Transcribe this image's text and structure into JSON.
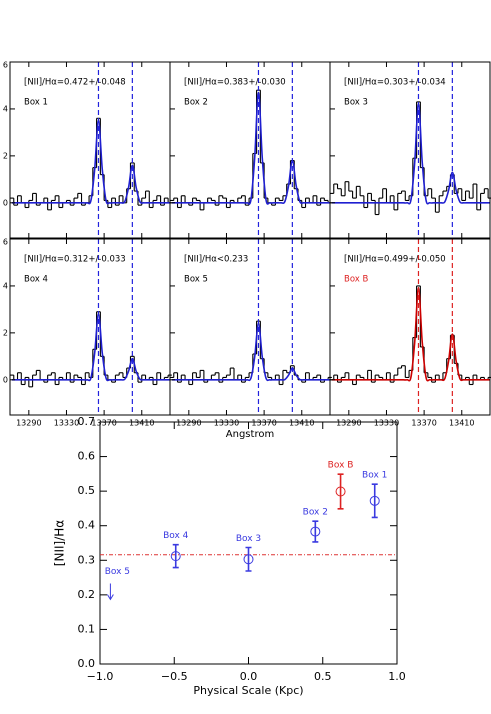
{
  "chart_data": [
    {
      "type": "spectrum",
      "annotation": "[NII]/Hα=0.472+/-0.048",
      "box_label": "Box 1",
      "box_label_color": "#000000",
      "color": "#000000",
      "fit_color": "#1f1fd0",
      "vline_color": "#2222dd",
      "vlines": [
        13364,
        13400
      ],
      "xlim": [
        13270,
        13440
      ],
      "ylim": [
        -1.5,
        6
      ],
      "xticks": [
        13290,
        13330,
        13370,
        13410
      ],
      "yticks": [
        0,
        2,
        4,
        6
      ],
      "x": [
        13272,
        13276,
        13280,
        13284,
        13288,
        13292,
        13296,
        13300,
        13304,
        13308,
        13312,
        13316,
        13320,
        13324,
        13328,
        13332,
        13336,
        13340,
        13344,
        13348,
        13352,
        13356,
        13360,
        13364,
        13368,
        13372,
        13376,
        13380,
        13384,
        13388,
        13392,
        13396,
        13400,
        13404,
        13408,
        13412,
        13416,
        13420,
        13424,
        13428,
        13432,
        13436,
        13440
      ],
      "values": [
        0.2,
        -0.1,
        0.3,
        0.0,
        -0.2,
        0.1,
        0.4,
        -0.1,
        0.0,
        0.2,
        -0.3,
        0.1,
        0.3,
        -0.2,
        0.0,
        0.1,
        -0.1,
        0.2,
        0.4,
        -0.1,
        0.0,
        0.3,
        1.5,
        3.6,
        1.2,
        0.1,
        -0.2,
        0.2,
        -0.1,
        0.3,
        0.0,
        0.6,
        1.7,
        0.5,
        -0.1,
        0.2,
        0.5,
        -0.2,
        0.1,
        0.3,
        -0.1,
        0.2,
        0.0
      ],
      "fit": [
        0,
        0,
        0,
        0,
        0,
        0,
        0,
        0,
        0,
        0,
        0,
        0,
        0,
        0,
        0,
        0,
        0,
        0,
        0,
        0,
        0,
        0.1,
        1.44,
        3.5,
        1.44,
        0.1,
        0,
        0,
        0,
        0,
        0.05,
        0.66,
        1.6,
        0.66,
        0.05,
        0,
        0,
        0,
        0,
        0,
        0,
        0,
        0
      ]
    },
    {
      "type": "spectrum",
      "annotation": "[NII]/Hα=0.383+/-0.030",
      "box_label": "Box 2",
      "box_label_color": "#000000",
      "color": "#000000",
      "fit_color": "#1f1fd0",
      "vline_color": "#2222dd",
      "vlines": [
        13364,
        13400
      ],
      "xlim": [
        13270,
        13440
      ],
      "ylim": [
        -1.5,
        6
      ],
      "xticks": [
        13290,
        13330,
        13370,
        13410
      ],
      "yticks": [
        0,
        2,
        4,
        6
      ],
      "x": [
        13272,
        13276,
        13280,
        13284,
        13288,
        13292,
        13296,
        13300,
        13304,
        13308,
        13312,
        13316,
        13320,
        13324,
        13328,
        13332,
        13336,
        13340,
        13344,
        13348,
        13352,
        13356,
        13360,
        13364,
        13368,
        13372,
        13376,
        13380,
        13384,
        13388,
        13392,
        13396,
        13400,
        13404,
        13408,
        13412,
        13416,
        13420,
        13424,
        13428,
        13432,
        13436,
        13440
      ],
      "values": [
        0.1,
        0.2,
        -0.2,
        0.3,
        0.0,
        -0.1,
        0.2,
        0.1,
        -0.3,
        0.0,
        0.2,
        0.1,
        -0.1,
        0.3,
        0.2,
        -0.2,
        0.1,
        0.0,
        0.2,
        0.3,
        -0.1,
        0.2,
        2.1,
        4.8,
        1.7,
        0.2,
        0.0,
        -0.1,
        0.2,
        0.1,
        0.3,
        0.8,
        1.8,
        0.6,
        0.1,
        -0.2,
        0.2,
        0.0,
        0.3,
        -0.1,
        0.2,
        0.1,
        0.0
      ],
      "fit": [
        0,
        0,
        0,
        0,
        0,
        0,
        0,
        0,
        0,
        0,
        0,
        0,
        0,
        0,
        0,
        0,
        0,
        0,
        0,
        0,
        0,
        0.13,
        1.93,
        4.7,
        1.93,
        0.13,
        0,
        0,
        0,
        0,
        0.05,
        0.74,
        1.8,
        0.74,
        0.05,
        0,
        0,
        0,
        0,
        0,
        0,
        0,
        0
      ]
    },
    {
      "type": "spectrum",
      "annotation": "[NII]/Hα=0.303+/-0.034",
      "box_label": "Box 3",
      "box_label_color": "#000000",
      "color": "#000000",
      "fit_color": "#1f1fd0",
      "vline_color": "#2222dd",
      "vlines": [
        13364,
        13400
      ],
      "xlim": [
        13270,
        13440
      ],
      "ylim": [
        -1.5,
        6
      ],
      "xticks": [
        13290,
        13330,
        13370,
        13410
      ],
      "yticks": [
        0,
        2,
        4,
        6
      ],
      "x": [
        13272,
        13276,
        13280,
        13284,
        13288,
        13292,
        13296,
        13300,
        13304,
        13308,
        13312,
        13316,
        13320,
        13324,
        13328,
        13332,
        13336,
        13340,
        13344,
        13348,
        13352,
        13356,
        13360,
        13364,
        13368,
        13372,
        13376,
        13380,
        13384,
        13388,
        13392,
        13396,
        13400,
        13404,
        13408,
        13412,
        13416,
        13420,
        13424,
        13428,
        13432,
        13436,
        13440
      ],
      "values": [
        0.4,
        0.8,
        0.6,
        0.3,
        0.9,
        0.5,
        0.2,
        0.7,
        0.3,
        -0.2,
        0.4,
        0.1,
        -0.5,
        0.2,
        0.6,
        0.0,
        0.3,
        -0.3,
        0.4,
        0.5,
        0.1,
        0.3,
        1.9,
        4.3,
        1.5,
        0.3,
        0.6,
        0.2,
        -0.4,
        0.3,
        0.5,
        0.7,
        1.2,
        0.4,
        0.6,
        0.1,
        0.5,
        0.2,
        0.8,
        -0.3,
        0.4,
        0.6,
        0.2
      ],
      "fit": [
        0,
        0,
        0,
        0,
        0,
        0,
        0,
        0,
        0,
        0,
        0,
        0,
        0,
        0,
        0,
        0,
        0,
        0,
        0,
        0,
        0,
        0.12,
        1.72,
        4.2,
        1.72,
        0.12,
        0,
        0,
        0,
        0,
        0.04,
        0.53,
        1.3,
        0.53,
        0.04,
        0,
        0,
        0,
        0,
        0,
        0,
        0,
        0
      ]
    },
    {
      "type": "spectrum",
      "annotation": "[NII]/Hα=0.312+/-0.033",
      "box_label": "Box 4",
      "box_label_color": "#000000",
      "color": "#000000",
      "fit_color": "#1f1fd0",
      "vline_color": "#2222dd",
      "vlines": [
        13364,
        13400
      ],
      "xlim": [
        13270,
        13440
      ],
      "ylim": [
        -1.5,
        6
      ],
      "xticks": [
        13290,
        13330,
        13370,
        13410
      ],
      "yticks": [
        0,
        2,
        4,
        6
      ],
      "x": [
        13272,
        13276,
        13280,
        13284,
        13288,
        13292,
        13296,
        13300,
        13304,
        13308,
        13312,
        13316,
        13320,
        13324,
        13328,
        13332,
        13336,
        13340,
        13344,
        13348,
        13352,
        13356,
        13360,
        13364,
        13368,
        13372,
        13376,
        13380,
        13384,
        13388,
        13392,
        13396,
        13400,
        13404,
        13408,
        13412,
        13416,
        13420,
        13424,
        13428,
        13432,
        13436,
        13440
      ],
      "values": [
        0.2,
        0.0,
        0.3,
        -0.2,
        0.1,
        -0.3,
        0.2,
        0.4,
        0.0,
        -0.1,
        0.2,
        0.3,
        -0.2,
        0.1,
        0.0,
        0.3,
        -0.1,
        0.2,
        0.1,
        -0.2,
        0.3,
        0.1,
        1.3,
        2.9,
        1.0,
        0.2,
        0.0,
        -0.1,
        0.2,
        0.3,
        0.1,
        0.5,
        1.0,
        0.3,
        -0.1,
        0.2,
        0.0,
        0.1,
        -0.2,
        0.3,
        0.0,
        0.1,
        0.2
      ],
      "fit": [
        0,
        0,
        0,
        0,
        0,
        0,
        0,
        0,
        0,
        0,
        0,
        0,
        0,
        0,
        0,
        0,
        0,
        0,
        0,
        0,
        0,
        0.08,
        1.15,
        2.8,
        1.15,
        0.08,
        0,
        0,
        0,
        0,
        0.03,
        0.37,
        0.9,
        0.37,
        0.03,
        0,
        0,
        0,
        0,
        0,
        0,
        0,
        0
      ]
    },
    {
      "type": "spectrum",
      "annotation": "[NII]/Hα<0.233",
      "box_label": "Box 5",
      "box_label_color": "#000000",
      "color": "#000000",
      "fit_color": "#1f1fd0",
      "vline_color": "#2222dd",
      "vlines": [
        13364,
        13400
      ],
      "xlim": [
        13270,
        13440
      ],
      "ylim": [
        -1.5,
        6
      ],
      "xticks": [
        13290,
        13330,
        13370,
        13410
      ],
      "yticks": [
        0,
        2,
        4,
        6
      ],
      "xlabel": "Angstrom",
      "x": [
        13272,
        13276,
        13280,
        13284,
        13288,
        13292,
        13296,
        13300,
        13304,
        13308,
        13312,
        13316,
        13320,
        13324,
        13328,
        13332,
        13336,
        13340,
        13344,
        13348,
        13352,
        13356,
        13360,
        13364,
        13368,
        13372,
        13376,
        13380,
        13384,
        13388,
        13392,
        13396,
        13400,
        13404,
        13408,
        13412,
        13416,
        13420,
        13424,
        13428,
        13432,
        13436,
        13440
      ],
      "values": [
        0.1,
        0.3,
        -0.1,
        0.2,
        0.0,
        -0.2,
        0.3,
        0.1,
        0.4,
        -0.1,
        0.0,
        0.2,
        0.3,
        -0.1,
        0.1,
        0.2,
        0.5,
        0.0,
        0.2,
        -0.1,
        0.1,
        0.3,
        1.1,
        2.5,
        0.9,
        0.3,
        0.1,
        0.0,
        0.2,
        -0.2,
        0.4,
        0.3,
        0.6,
        0.2,
        0.0,
        -0.1,
        0.3,
        0.0,
        0.1,
        0.2,
        -0.1,
        0.0,
        0.1
      ],
      "fit": [
        0,
        0,
        0,
        0,
        0,
        0,
        0,
        0,
        0,
        0,
        0,
        0,
        0,
        0,
        0,
        0,
        0,
        0,
        0,
        0,
        0,
        0.07,
        0.98,
        2.4,
        0.98,
        0.07,
        0,
        0,
        0,
        0,
        0.01,
        0.2,
        0.5,
        0.2,
        0.01,
        0,
        0,
        0,
        0,
        0,
        0,
        0,
        0
      ]
    },
    {
      "type": "spectrum",
      "annotation": "[NII]/Hα=0.499+/-0.050",
      "box_label": "Box B",
      "box_label_color": "#dd2222",
      "color": "#000000",
      "fit_color": "#cc0000",
      "vline_color": "#dd2222",
      "vlines": [
        13364,
        13400
      ],
      "xlim": [
        13270,
        13440
      ],
      "ylim": [
        -1.5,
        6
      ],
      "xticks": [
        13290,
        13330,
        13370,
        13410
      ],
      "yticks": [
        0,
        2,
        4,
        6
      ],
      "x": [
        13272,
        13276,
        13280,
        13284,
        13288,
        13292,
        13296,
        13300,
        13304,
        13308,
        13312,
        13316,
        13320,
        13324,
        13328,
        13332,
        13336,
        13340,
        13344,
        13348,
        13352,
        13356,
        13360,
        13364,
        13368,
        13372,
        13376,
        13380,
        13384,
        13388,
        13392,
        13396,
        13400,
        13404,
        13408,
        13412,
        13416,
        13420,
        13424,
        13428,
        13432,
        13436,
        13440
      ],
      "values": [
        0.0,
        0.2,
        -0.1,
        0.1,
        0.3,
        0.0,
        -0.2,
        0.2,
        0.1,
        0.0,
        0.4,
        -0.1,
        0.2,
        0.1,
        0.0,
        0.3,
        -0.1,
        0.2,
        0.5,
        0.6,
        0.1,
        0.4,
        1.8,
        4.0,
        1.4,
        0.3,
        0.1,
        -0.1,
        0.2,
        0.0,
        0.3,
        0.9,
        1.9,
        0.7,
        0.2,
        0.0,
        0.1,
        -0.2,
        0.2,
        0.0,
        0.1,
        0.0,
        0.1
      ],
      "fit": [
        0,
        0,
        0,
        0,
        0,
        0,
        0,
        0,
        0,
        0,
        0,
        0,
        0,
        0,
        0,
        0,
        0,
        0,
        0,
        0,
        0,
        0.11,
        1.6,
        3.9,
        1.6,
        0.11,
        0,
        0,
        0,
        0,
        0.05,
        0.8,
        1.95,
        0.8,
        0.05,
        0,
        0,
        0,
        0,
        0,
        0,
        0,
        0
      ]
    },
    {
      "type": "errorbar",
      "xlabel": "Physical Scale (Kpc)",
      "ylabel": "[NII]/Hα",
      "xlim": [
        -1,
        1
      ],
      "ylim": [
        0,
        0.7
      ],
      "xticks": [
        {
          "value": -1,
          "label": "−1.0"
        },
        {
          "value": -0.5,
          "label": "−0.5"
        },
        {
          "value": 0,
          "label": "0.0"
        },
        {
          "value": 0.5,
          "label": "0.5"
        },
        {
          "value": 1,
          "label": "1.0"
        }
      ],
      "yticks": [
        {
          "value": 0,
          "label": "0.0"
        },
        {
          "value": 0.1,
          "label": "0.1"
        },
        {
          "value": 0.2,
          "label": "0.2"
        },
        {
          "value": 0.3,
          "label": "0.3"
        },
        {
          "value": 0.4,
          "label": "0.4"
        },
        {
          "value": 0.5,
          "label": "0.5"
        },
        {
          "value": 0.6,
          "label": "0.6"
        },
        {
          "value": 0.7,
          "label": "0.7"
        }
      ],
      "reference_y": 0.316,
      "reference_color": "#dd3333",
      "points": [
        {
          "label": "Box 5",
          "x": -0.93,
          "y": 0.233,
          "upper_limit": true,
          "color": "#3a3ae0"
        },
        {
          "label": "Box 4",
          "x": -0.49,
          "y": 0.312,
          "error": 0.033,
          "color": "#3a3ae0"
        },
        {
          "label": "Box 3",
          "x": 0.0,
          "y": 0.303,
          "error": 0.034,
          "color": "#3a3ae0"
        },
        {
          "label": "Box 2",
          "x": 0.45,
          "y": 0.383,
          "error": 0.03,
          "color": "#3a3ae0"
        },
        {
          "label": "Box B",
          "x": 0.62,
          "y": 0.499,
          "error": 0.05,
          "color": "#dd2222"
        },
        {
          "label": "Box 1",
          "x": 0.85,
          "y": 0.472,
          "error": 0.048,
          "color": "#3a3ae0"
        }
      ]
    }
  ]
}
